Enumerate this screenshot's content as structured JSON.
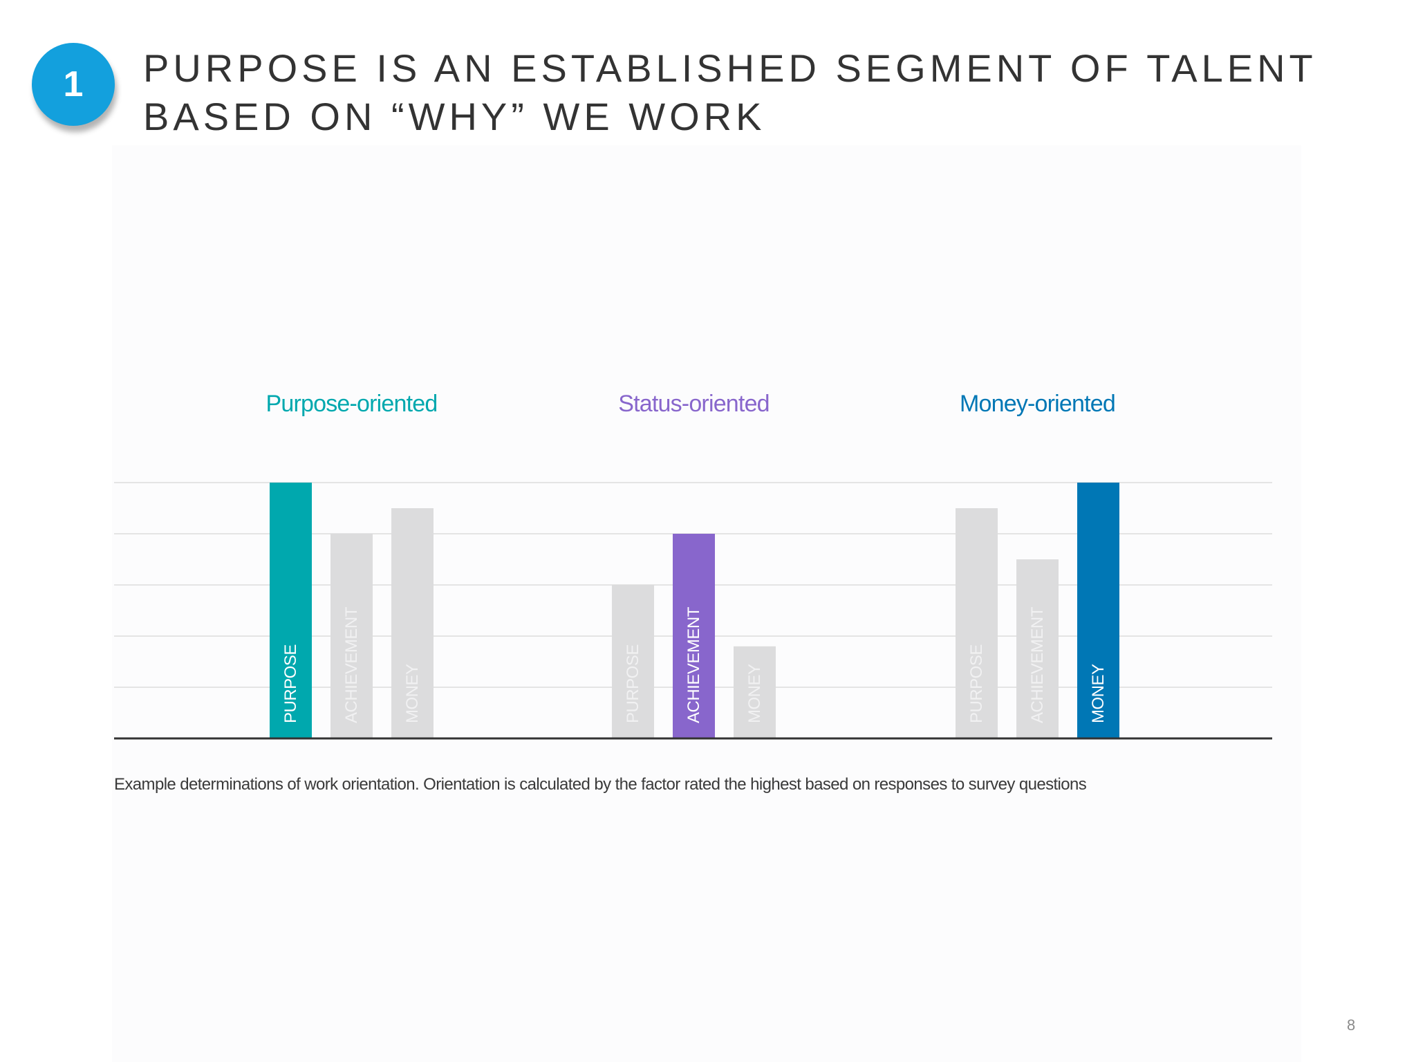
{
  "slide": {
    "badge": "1",
    "title_lines": [
      "PURPOSE IS AN ESTABLISHED SEGMENT OF TALENT",
      "BASED ON “WHY” WE WORK"
    ],
    "caption": "Example determinations of work orientation. Orientation is calculated by the factor rated the highest based on responses to survey questions",
    "page_number": "8"
  },
  "colors": {
    "badge": "#13a0dd",
    "purpose": "#00a8ae",
    "status": "#8866cc",
    "money": "#0077b5",
    "muted_bar": "#dcdcdd",
    "grid": "#e4e4e4",
    "baseline": "#333333"
  },
  "chart_data": {
    "type": "bar",
    "title": "",
    "xlabel": "",
    "ylabel": "",
    "ylim": [
      0,
      5
    ],
    "grid": true,
    "legend": "none",
    "groups": [
      {
        "title": "Purpose-oriented",
        "color_key": "purpose",
        "bars": [
          {
            "label": "PURPOSE",
            "value": 5.0,
            "highlight": true
          },
          {
            "label": "ACHIEVEMENT",
            "value": 4.0,
            "highlight": false
          },
          {
            "label": "MONEY",
            "value": 4.5,
            "highlight": false
          }
        ]
      },
      {
        "title": "Status-oriented",
        "color_key": "status",
        "bars": [
          {
            "label": "PURPOSE",
            "value": 3.0,
            "highlight": false
          },
          {
            "label": "ACHIEVEMENT",
            "value": 4.0,
            "highlight": true
          },
          {
            "label": "MONEY",
            "value": 1.8,
            "highlight": false
          }
        ]
      },
      {
        "title": "Money-oriented",
        "color_key": "money",
        "bars": [
          {
            "label": "PURPOSE",
            "value": 4.5,
            "highlight": false
          },
          {
            "label": "ACHIEVEMENT",
            "value": 3.5,
            "highlight": false
          },
          {
            "label": "MONEY",
            "value": 5.0,
            "highlight": true
          }
        ]
      }
    ]
  }
}
